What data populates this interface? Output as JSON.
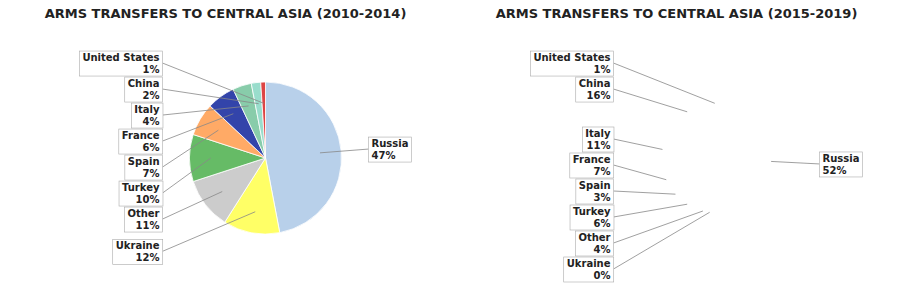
{
  "chart_data": [
    {
      "type": "pie",
      "title": "ARMS TRANSFERS TO CENTRAL ASIA (2010-2014)",
      "categories": [
        "Russia",
        "Ukraine",
        "Other",
        "Turkey",
        "Spain",
        "France",
        "Italy",
        "China",
        "United States"
      ],
      "values": [
        47,
        12,
        11,
        10,
        7,
        6,
        4,
        2,
        1
      ],
      "value_labels": [
        "47%",
        "12%",
        "11%",
        "10%",
        "7%",
        "6%",
        "4%",
        "2%",
        "1%"
      ],
      "colors": [
        "#b8d0ea",
        "#ffff66",
        "#cccccc",
        "#66bb66",
        "#ffaa66",
        "#3344aa",
        "#88ccaa",
        "#99ddcc",
        "#dd4444"
      ],
      "data_labels": true
    },
    {
      "type": "pie",
      "title": "ARMS TRANSFERS TO CENTRAL ASIA (2015-2019)",
      "categories": [
        "Russia",
        "Ukraine",
        "Other",
        "Turkey",
        "Spain",
        "France",
        "Italy",
        "China",
        "United States"
      ],
      "values": [
        52,
        0,
        4,
        6,
        3,
        7,
        11,
        16,
        1
      ],
      "value_labels": [
        "52%",
        "0%",
        "4%",
        "6%",
        "3%",
        "7%",
        "11%",
        "16%",
        "1%"
      ],
      "colors": [
        "#b8d0ea",
        "#cccccc",
        "#bbbbbb",
        "#ffaa66",
        "#3344aa",
        "#4455bb",
        "#88ccaa",
        "#ee4444",
        "#9933aa"
      ],
      "data_labels": true
    }
  ]
}
